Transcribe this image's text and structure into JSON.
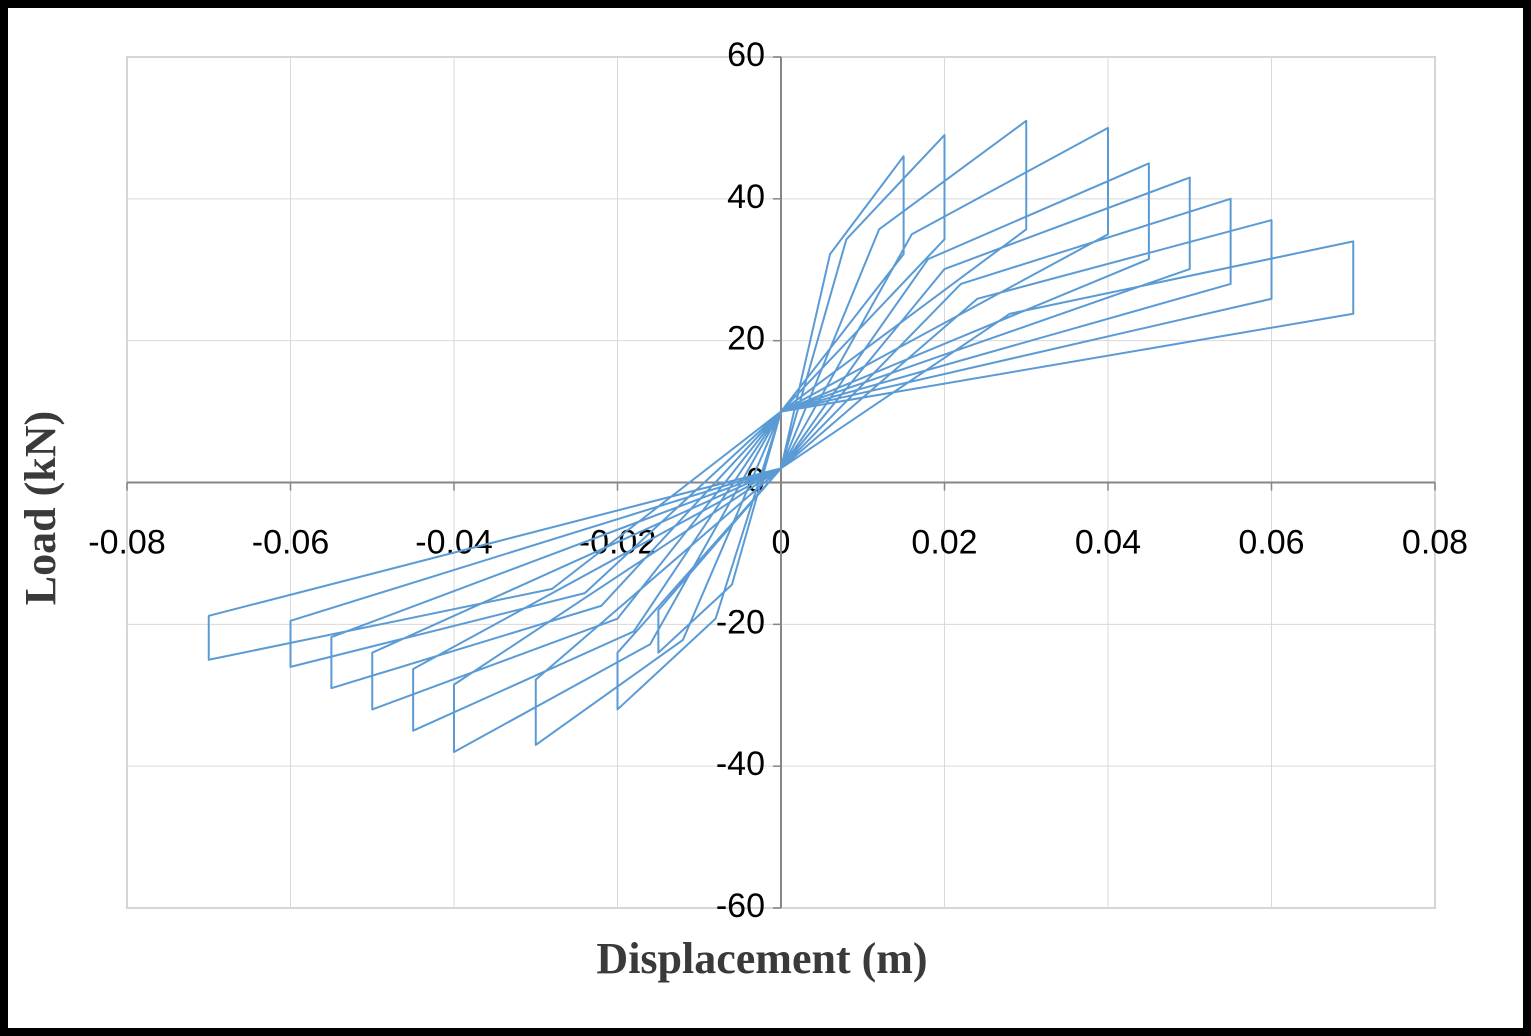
{
  "chart_data": {
    "type": "line",
    "x_label": "Displacement (m)",
    "y_label": "Load (kN)",
    "xlim": [
      -0.08,
      0.08
    ],
    "ylim": [
      -60,
      60
    ],
    "xticks": [
      -0.08,
      -0.06,
      -0.04,
      -0.02,
      0,
      0.02,
      0.04,
      0.06,
      0.08
    ],
    "yticks": [
      -60,
      -40,
      -20,
      0,
      20,
      40,
      60
    ],
    "grid": true,
    "color": "#5b9bd5",
    "x": [
      0,
      0.006,
      0.015,
      0.015,
      0,
      -0.006,
      -0.015,
      -0.015,
      0,
      0.008,
      0.02,
      0.02,
      0,
      -0.008,
      -0.02,
      -0.02,
      0,
      0.012,
      0.03,
      0.03,
      0,
      -0.012,
      -0.03,
      -0.03,
      0,
      0.016,
      0.04,
      0.04,
      0,
      -0.016,
      -0.04,
      -0.04,
      0,
      0.018,
      0.045,
      0.045,
      0,
      -0.018,
      -0.045,
      -0.045,
      0,
      0.02,
      0.05,
      0.05,
      0,
      -0.02,
      -0.05,
      -0.05,
      0,
      0.022,
      0.055,
      0.055,
      0,
      -0.022,
      -0.055,
      -0.055,
      0,
      0.024,
      0.06,
      0.06,
      0,
      -0.024,
      -0.06,
      -0.06,
      0,
      0.028,
      0.07,
      0.07,
      0,
      -0.028,
      -0.07,
      -0.07,
      0
    ],
    "values": [
      2,
      32.2,
      46,
      32.2,
      10,
      -14.4,
      -24,
      -18,
      2,
      34.3,
      49,
      34.3,
      10,
      -19.2,
      -32,
      -24,
      2,
      35.7,
      51,
      35.7,
      10,
      -22.2,
      -37,
      -27.8,
      2,
      35,
      50,
      35,
      10,
      -22.8,
      -38,
      -28.5,
      2,
      31.5,
      45,
      31.5,
      10,
      -21,
      -35,
      -26.3,
      2,
      30.1,
      43,
      30.1,
      10,
      -19.2,
      -32,
      -24,
      2,
      28,
      40,
      28,
      10,
      -17.4,
      -29,
      -21.8,
      2,
      25.9,
      37,
      25.9,
      10,
      -15.6,
      -26,
      -19.5,
      2,
      23.8,
      34,
      23.8,
      10,
      -15,
      -25,
      -18.8,
      2
    ]
  }
}
